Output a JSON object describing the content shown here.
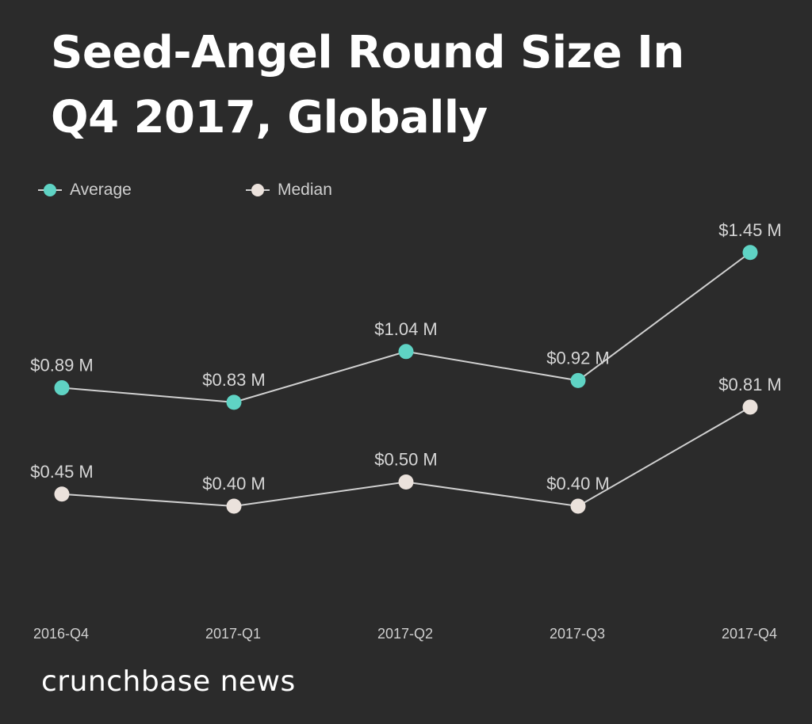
{
  "chart_data": {
    "type": "line",
    "title": "Seed-Angel Round Size In Q4 2017, Globally",
    "categories": [
      "2016-Q4",
      "2017-Q1",
      "2017-Q2",
      "2017-Q3",
      "2017-Q4"
    ],
    "series": [
      {
        "name": "Average",
        "values": [
          0.89,
          0.83,
          1.04,
          0.92,
          1.45
        ],
        "labels": [
          "$0.89 M",
          "$0.83 M",
          "$1.04 M",
          "$0.92 M",
          "$1.45 M"
        ],
        "color": "#5fd3c4"
      },
      {
        "name": "Median",
        "values": [
          0.45,
          0.4,
          0.5,
          0.4,
          0.81
        ],
        "labels": [
          "$0.45 M",
          "$0.40 M",
          "$0.50 M",
          "$0.40 M",
          "$0.81 M"
        ],
        "color": "#ebe2dc"
      }
    ],
    "xlabel": "",
    "ylabel": "",
    "ylim": [
      0,
      1.5
    ],
    "grid": false,
    "legend_position": "top-left",
    "line_color": "#d0d0d0",
    "background": "#2b2b2b"
  },
  "footer": {
    "brand": "crunchbase news"
  }
}
